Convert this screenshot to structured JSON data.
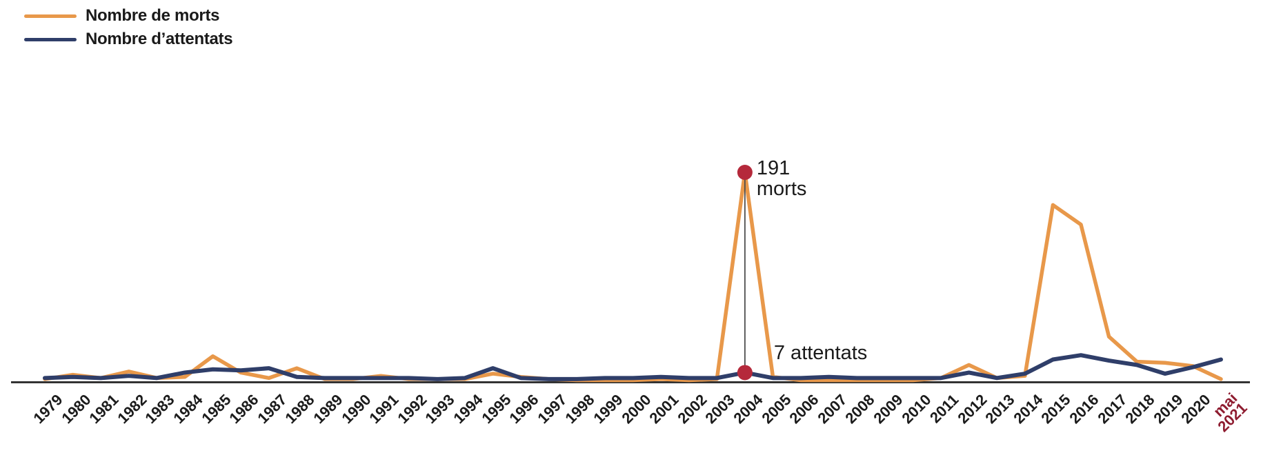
{
  "chart_data": {
    "type": "line",
    "title": "",
    "xlabel": "",
    "ylabel": "",
    "ylim": [
      0,
      200
    ],
    "grid": false,
    "legend_position": "top-left",
    "axis_color": "#333333",
    "x": [
      "1979",
      "1980",
      "1981",
      "1982",
      "1983",
      "1984",
      "1985",
      "1986",
      "1987",
      "1988",
      "1989",
      "1990",
      "1991",
      "1992",
      "1993",
      "1994",
      "1995",
      "1996",
      "1997",
      "1998",
      "1999",
      "2000",
      "2001",
      "2002",
      "2003",
      "2004",
      "2005",
      "2006",
      "2007",
      "2008",
      "2009",
      "2010",
      "2011",
      "2012",
      "2013",
      "2014",
      "2015",
      "2016",
      "2017",
      "2018",
      "2019",
      "2020",
      "mai 2021"
    ],
    "series": [
      {
        "name": "Nombre de morts",
        "color": "#E8984A",
        "values": [
          1,
          5,
          2,
          8,
          2,
          3,
          22,
          7,
          2,
          11,
          1,
          1,
          4,
          1,
          1,
          1,
          6,
          3,
          1,
          0,
          0,
          0,
          1,
          0,
          1,
          191,
          3,
          0,
          0,
          0,
          0,
          0,
          2,
          14,
          2,
          4,
          161,
          143,
          40,
          17,
          16,
          13,
          1
        ]
      },
      {
        "name": "Nombre d’attentats",
        "color": "#2F3E69",
        "values": [
          2,
          3,
          2,
          4,
          2,
          7,
          10,
          9,
          11,
          3,
          2,
          2,
          2,
          2,
          1,
          2,
          11,
          2,
          1,
          1,
          2,
          2,
          3,
          2,
          2,
          7,
          2,
          2,
          3,
          2,
          2,
          2,
          2,
          7,
          2,
          6,
          19,
          23,
          18,
          14,
          6,
          12,
          19
        ]
      }
    ],
    "annotation": {
      "year": "2004",
      "dot_color": "#B5293B",
      "connector_color": "#4D4D4D",
      "morts_value": "191",
      "morts_word": "morts",
      "attentats_label": "7 attentats"
    },
    "final_tick": {
      "lines": [
        "mai",
        "2021"
      ],
      "color": "#8E1C30"
    }
  }
}
